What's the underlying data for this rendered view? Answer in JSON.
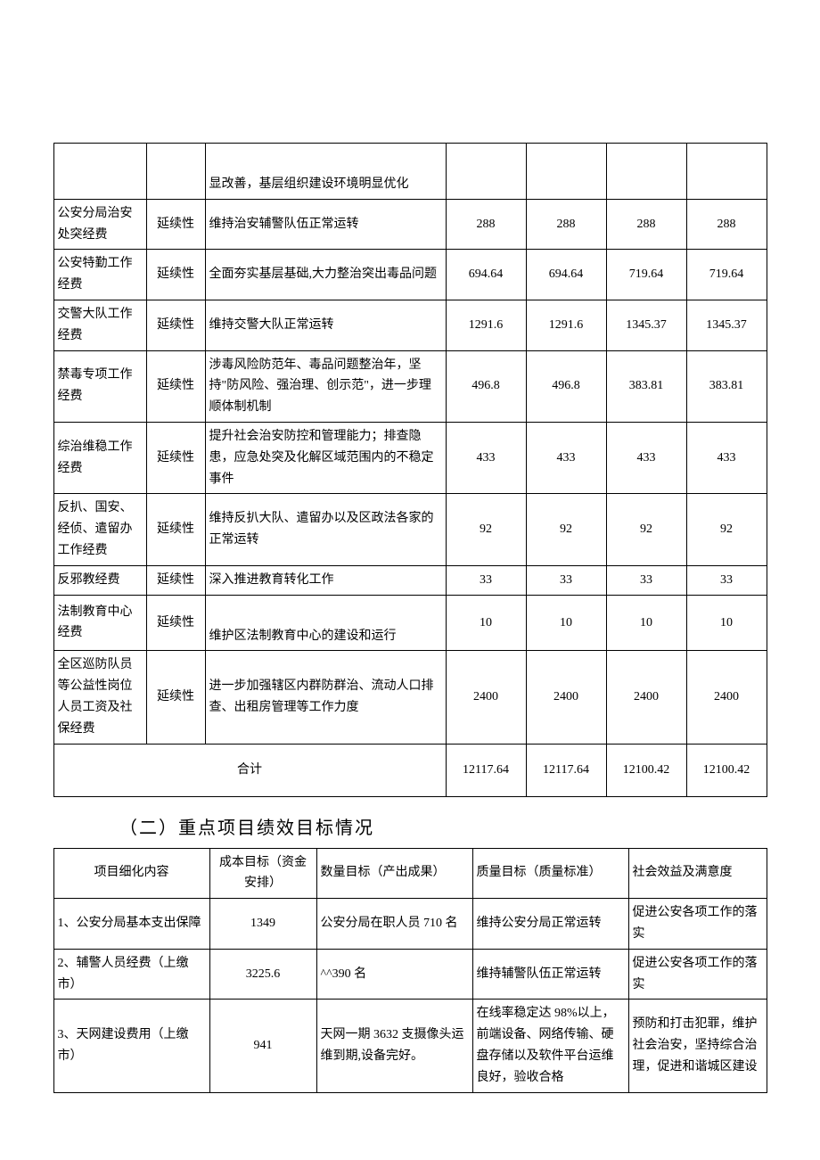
{
  "table1": {
    "row0": {
      "desc": "显改善，基层组织建设环境明显优化"
    },
    "rows": [
      {
        "name": "公安分局治安处突经费",
        "type": "延续性",
        "desc": "维持治安辅警队伍正常运转",
        "v1": "288",
        "v2": "288",
        "v3": "288",
        "v4": "288"
      },
      {
        "name": "公安特勤工作经费",
        "type": "延续性",
        "desc": "全面夯实基层基础,大力整治突出毒品问题",
        "v1": "694.64",
        "v2": "694.64",
        "v3": "719.64",
        "v4": "719.64"
      },
      {
        "name": "交警大队工作经费",
        "type": "延续性",
        "desc": "维持交警大队正常运转",
        "v1": "1291.6",
        "v2": "1291.6",
        "v3": "1345.37",
        "v4": "1345.37"
      },
      {
        "name": "禁毒专项工作经费",
        "type": "延续性",
        "desc": "涉毒风险防范年、毒品问题整治年，坚持\"防风险、强治理、创示范\"，进一步理顺体制机制",
        "v1": "496.8",
        "v2": "496.8",
        "v3": "383.81",
        "v4": "383.81"
      },
      {
        "name": "综治维稳工作经费",
        "type": "延续性",
        "desc": "提升社会治安防控和管理能力；排查隐患，应急处突及化解区域范围内的不稳定事件",
        "v1": "433",
        "v2": "433",
        "v3": "433",
        "v4": "433"
      },
      {
        "name": "反扒、国安、经侦、遣留办工作经费",
        "type": "延续性",
        "desc": "维持反扒大队、遣留办以及区政法各家的正常运转",
        "v1": "92",
        "v2": "92",
        "v3": "92",
        "v4": "92"
      },
      {
        "name": "反邪教经费",
        "type": "延续性",
        "desc": "深入推进教育转化工作",
        "v1": "33",
        "v2": "33",
        "v3": "33",
        "v4": "33"
      },
      {
        "name": "法制教育中心经费",
        "type": "延续性",
        "desc": "维护区法制教育中心的建设和运行",
        "v1": "10",
        "v2": "10",
        "v3": "10",
        "v4": "10",
        "descPad": true
      },
      {
        "name": "全区巡防队员等公益性岗位人员工资及社保经费",
        "type": "延续性",
        "desc": "进一步加强辖区内群防群治、流动人口排查、出租房管理等工作力度",
        "v1": "2400",
        "v2": "2400",
        "v3": "2400",
        "v4": "2400"
      }
    ],
    "total": {
      "label": "合计",
      "v1": "12117.64",
      "v2": "12117.64",
      "v3": "12100.42",
      "v4": "12100.42"
    }
  },
  "heading2": "（二）重点项目绩效目标情况",
  "table2": {
    "header": {
      "c1": "项目细化内容",
      "c2": "成本目标（资金安排）",
      "c3": "数量目标（产出成果）",
      "c4": "质量目标（质量标准）",
      "c5": "社会效益及满意度"
    },
    "rows": [
      {
        "c1": "1、公安分局基本支出保障",
        "c2": "1349",
        "c3": "公安分局在职人员 710 名",
        "c4": "维持公安分局正常运转",
        "c5": "促进公安各项工作的落实"
      },
      {
        "c1": "2、辅警人员经费（上缴市）",
        "c2": "3225.6",
        "c3": "^^390 名",
        "c4": "维持辅警队伍正常运转",
        "c5": "促进公安各项工作的落实"
      },
      {
        "c1": "3、天网建设费用（上缴市）",
        "c2": "941",
        "c3": "天网一期 3632 支摄像头运维到期,设备完好。",
        "c4": "在线率稳定达 98%以上，前端设备、网络传输、硬盘存储以及软件平台运维良好，验收合格",
        "c5": "预防和打击犯罪，维护社会治安，坚持综合治理，促进和谐城区建设"
      }
    ]
  }
}
